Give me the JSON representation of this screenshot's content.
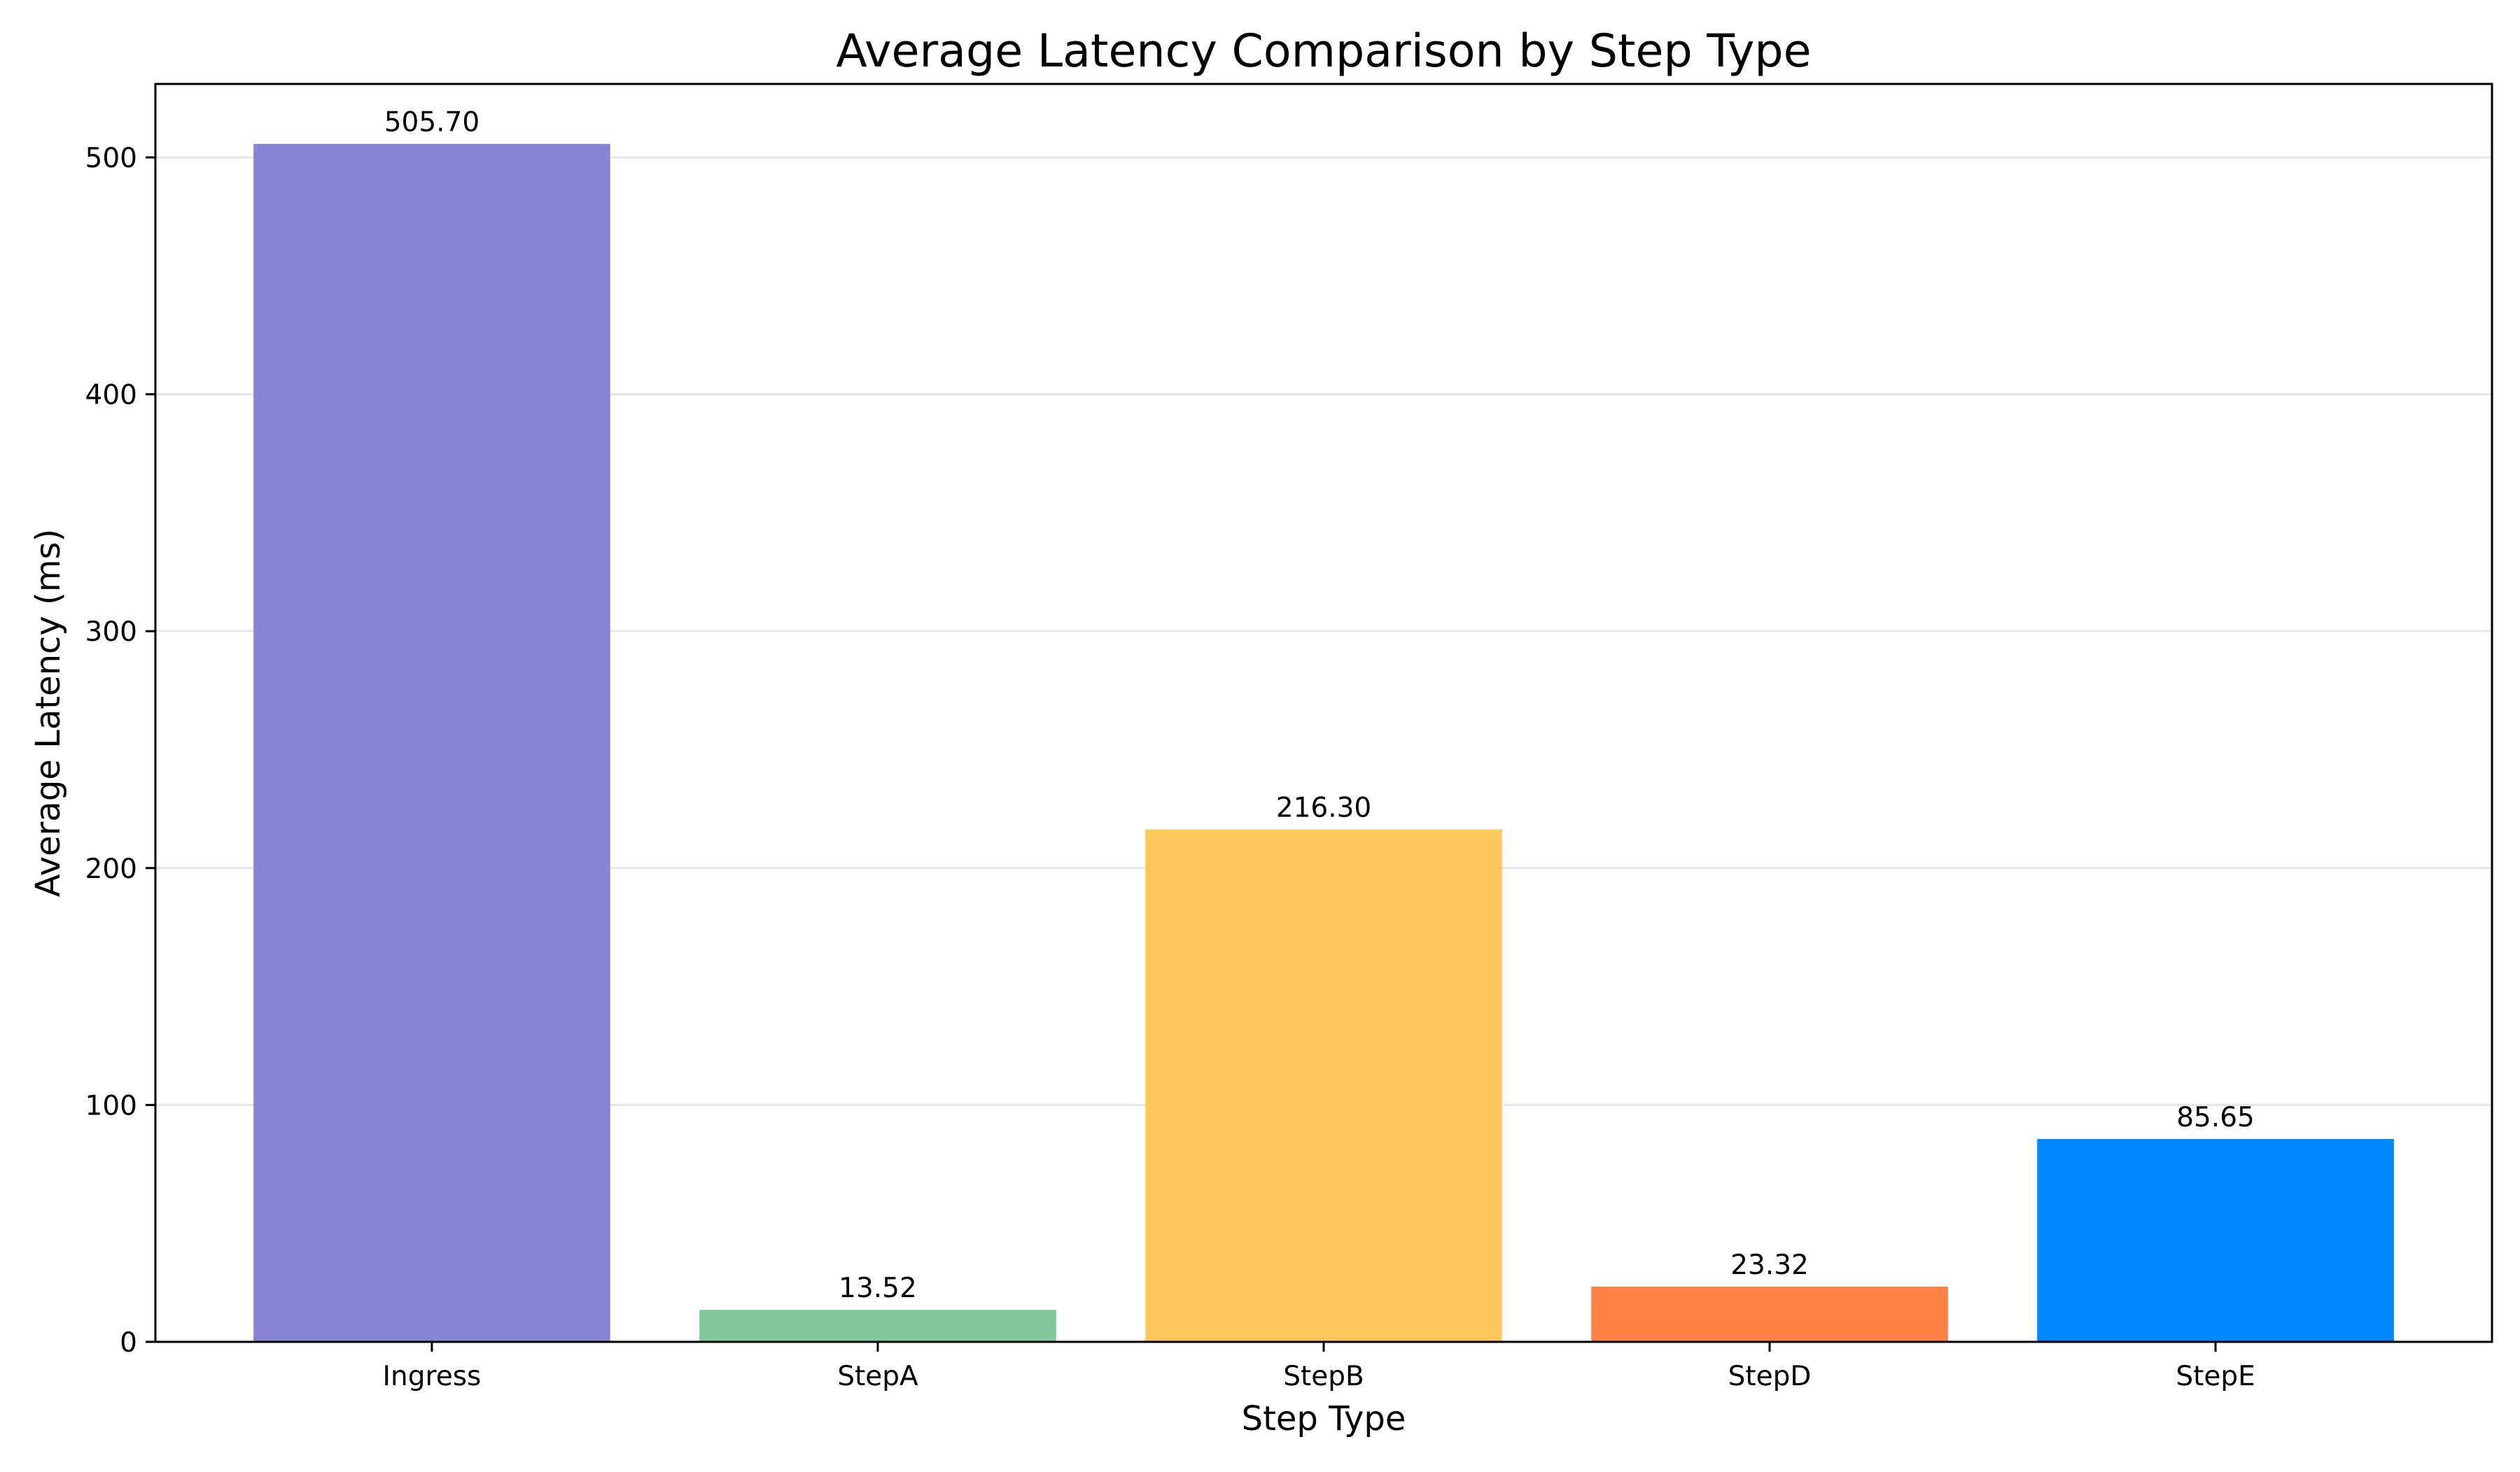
{
  "chart_data": {
    "type": "bar",
    "title": "Average Latency Comparison by Step Type",
    "xlabel": "Step Type",
    "ylabel": "Average Latency (ms)",
    "categories": [
      "Ingress",
      "StepA",
      "StepB",
      "StepD",
      "StepE"
    ],
    "values": [
      505.7,
      13.52,
      216.3,
      23.32,
      85.65
    ],
    "value_labels": [
      "505.70",
      "13.52",
      "216.30",
      "23.32",
      "85.65"
    ],
    "colors": [
      "#8785D7",
      "#82C89B",
      "#FFC75C",
      "#FF8244",
      "#0088FF"
    ],
    "ylim": [
      0,
      531
    ],
    "yticks": [
      0,
      100,
      200,
      300,
      400,
      500
    ],
    "grid": "horizontal",
    "legend": "none"
  }
}
